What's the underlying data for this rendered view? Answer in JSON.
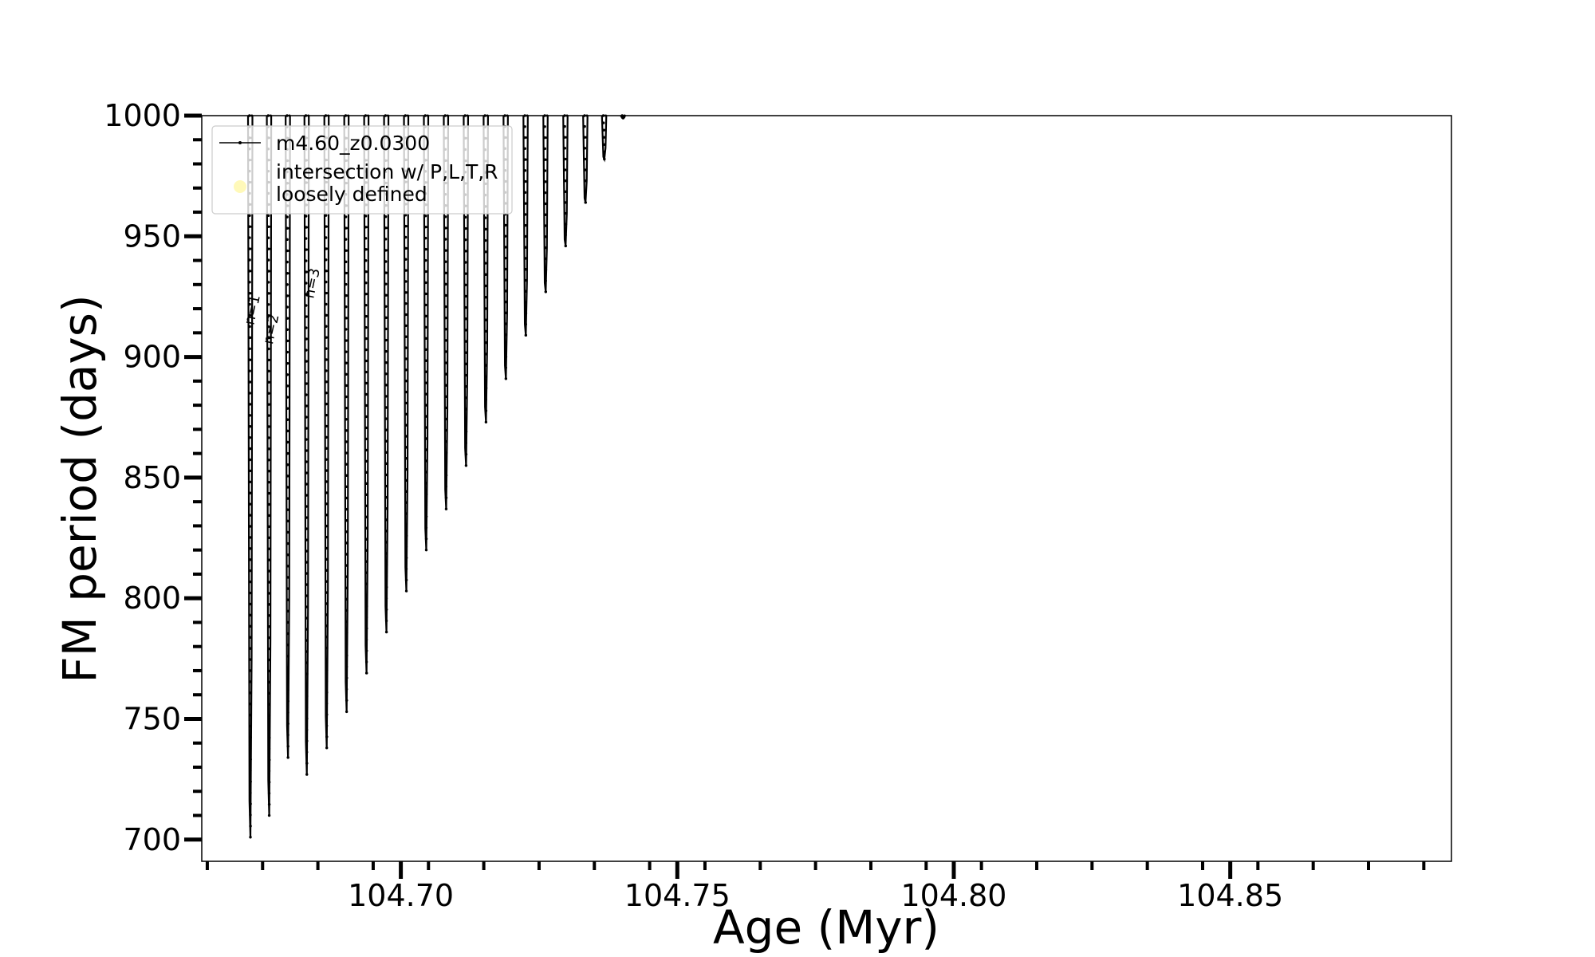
{
  "chart_data": {
    "type": "line",
    "title": "",
    "xlabel": "Age (Myr)",
    "ylabel": "FM period (days)",
    "xlim": [
      104.664,
      104.89
    ],
    "ylim": [
      691,
      1000
    ],
    "x_ticks": [
      104.7,
      104.75,
      104.8,
      104.85
    ],
    "x_tick_labels": [
      "104.70",
      "104.75",
      "104.80",
      "104.85"
    ],
    "y_ticks": [
      700,
      750,
      800,
      850,
      900,
      950,
      1000
    ],
    "y_tick_labels": [
      "700",
      "750",
      "800",
      "850",
      "900",
      "950",
      "1000"
    ],
    "grid": false,
    "legend_position": "top-left",
    "legend": [
      {
        "label": "m4.60_z0.0300",
        "color": "#000000",
        "marker": "line"
      },
      {
        "label": "intersection w/ P,L,T,R\nloosely defined",
        "color": "#fff7a8",
        "marker": "circle"
      }
    ],
    "series": [
      {
        "name": "m4.60_z0.0300",
        "color": "#000000",
        "pulses": [
          {
            "x": 104.6728,
            "min_period": 701
          },
          {
            "x": 104.6762,
            "min_period": 710
          },
          {
            "x": 104.6796,
            "min_period": 734
          },
          {
            "x": 104.683,
            "min_period": 727
          },
          {
            "x": 104.6866,
            "min_period": 738
          },
          {
            "x": 104.6902,
            "min_period": 753
          },
          {
            "x": 104.6938,
            "min_period": 769
          },
          {
            "x": 104.6974,
            "min_period": 786
          },
          {
            "x": 104.701,
            "min_period": 803
          },
          {
            "x": 104.7046,
            "min_period": 820
          },
          {
            "x": 104.7082,
            "min_period": 837
          },
          {
            "x": 104.7118,
            "min_period": 855
          },
          {
            "x": 104.7154,
            "min_period": 873
          },
          {
            "x": 104.719,
            "min_period": 891
          },
          {
            "x": 104.7226,
            "min_period": 909
          },
          {
            "x": 104.7262,
            "min_period": 927
          },
          {
            "x": 104.7298,
            "min_period": 946
          },
          {
            "x": 104.7334,
            "min_period": 964
          },
          {
            "x": 104.7368,
            "min_period": 982
          },
          {
            "x": 104.7402,
            "min_period": 999
          }
        ]
      }
    ],
    "annotations": [
      {
        "text": "n=1",
        "x": 104.6734,
        "y": 913
      },
      {
        "text": "n=2",
        "x": 104.6768,
        "y": 905
      },
      {
        "text": "n=3",
        "x": 104.6842,
        "y": 924
      }
    ]
  }
}
